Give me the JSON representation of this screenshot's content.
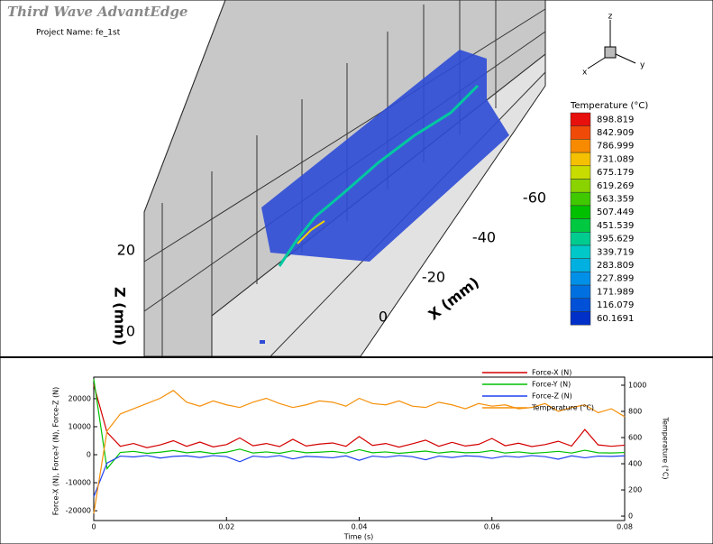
{
  "header": {
    "title": "Third Wave AdvantEdge",
    "project": "Project Name: fe_1st"
  },
  "view3d": {
    "z_label": "Z (mm)",
    "x_label": "X (mm)",
    "z_ticks": [
      20,
      0
    ],
    "x_ticks": [
      0,
      -20,
      -40,
      -60
    ],
    "triad": {
      "z": "z",
      "x": "x",
      "y": "y"
    }
  },
  "legend": {
    "title": "Temperature (°C)",
    "levels": [
      {
        "value": 898.819,
        "color": "#e8100c"
      },
      {
        "value": 842.909,
        "color": "#f04a08"
      },
      {
        "value": 786.999,
        "color": "#f88a00"
      },
      {
        "value": 731.089,
        "color": "#f5c000"
      },
      {
        "value": 675.179,
        "color": "#c8dc00"
      },
      {
        "value": 619.269,
        "color": "#8ad200"
      },
      {
        "value": 563.359,
        "color": "#40c800"
      },
      {
        "value": 507.449,
        "color": "#00c000"
      },
      {
        "value": 451.539,
        "color": "#00c840"
      },
      {
        "value": 395.629,
        "color": "#00cc90"
      },
      {
        "value": 339.719,
        "color": "#00c8c8"
      },
      {
        "value": 283.809,
        "color": "#00b0e0"
      },
      {
        "value": 227.899,
        "color": "#0090e8"
      },
      {
        "value": 171.989,
        "color": "#0070e0"
      },
      {
        "value": 116.079,
        "color": "#0050d8"
      },
      {
        "value": 60.1691,
        "color": "#0030c8"
      }
    ]
  },
  "chart_data": {
    "type": "line",
    "xlabel": "Time (s)",
    "ylabel": "Force-X (N), Force-Y (N), Force-Z (N)",
    "y2label": "Temperature (°C)",
    "x": [
      0,
      0.002,
      0.004,
      0.006,
      0.008,
      0.01,
      0.012,
      0.014,
      0.016,
      0.018,
      0.02,
      0.022,
      0.024,
      0.026,
      0.028,
      0.03,
      0.032,
      0.034,
      0.036,
      0.038,
      0.04,
      0.042,
      0.044,
      0.046,
      0.048,
      0.05,
      0.052,
      0.054,
      0.056,
      0.058,
      0.06,
      0.062,
      0.064,
      0.066,
      0.068,
      0.07,
      0.072,
      0.074,
      0.076,
      0.078,
      0.08
    ],
    "series": [
      {
        "name": "Force-X (N)",
        "color": "#d40000",
        "values": [
          25000,
          8000,
          3000,
          4000,
          2500,
          3500,
          5000,
          3000,
          4500,
          2800,
          3600,
          6000,
          3200,
          4000,
          2900,
          5500,
          3100,
          3800,
          4200,
          3000,
          6500,
          3300,
          4000,
          2700,
          3900,
          5200,
          3000,
          4400,
          3100,
          3700,
          5800,
          3200,
          4100,
          2900,
          3600,
          4800,
          3100,
          9000,
          3500,
          3000,
          3400
        ]
      },
      {
        "name": "Force-Y (N)",
        "color": "#00c000",
        "values": [
          27000,
          -5000,
          800,
          1200,
          500,
          900,
          1500,
          700,
          1100,
          400,
          900,
          2000,
          600,
          1000,
          500,
          1400,
          700,
          900,
          1200,
          600,
          1800,
          700,
          1000,
          500,
          900,
          1300,
          600,
          1100,
          700,
          800,
          1500,
          600,
          1000,
          500,
          800,
          1200,
          600,
          1600,
          700,
          600,
          800
        ]
      },
      {
        "name": "Force-Z (N)",
        "color": "#2040f0",
        "values": [
          -15000,
          -3000,
          -500,
          -800,
          -300,
          -1200,
          -600,
          -400,
          -1000,
          -300,
          -700,
          -2500,
          -500,
          -900,
          -300,
          -1500,
          -600,
          -800,
          -1100,
          -400,
          -2000,
          -500,
          -900,
          -300,
          -700,
          -1800,
          -500,
          -1000,
          -400,
          -600,
          -1300,
          -500,
          -900,
          -300,
          -700,
          -1600,
          -400,
          -1100,
          -500,
          -600,
          -400
        ]
      },
      {
        "name": "Temperature (°C)",
        "color": "#f5900a",
        "axis": "y2",
        "values": [
          20,
          650,
          780,
          820,
          860,
          900,
          960,
          870,
          840,
          880,
          850,
          830,
          870,
          900,
          860,
          830,
          850,
          880,
          870,
          840,
          900,
          860,
          850,
          880,
          840,
          830,
          870,
          850,
          820,
          860,
          840,
          850,
          820,
          830,
          860,
          800,
          830,
          850,
          790,
          820,
          760
        ]
      }
    ],
    "xlim": [
      0,
      0.08
    ],
    "xticks": [
      0,
      0.02,
      0.04,
      0.06,
      0.08
    ],
    "ylim": [
      -23500,
      27700
    ],
    "yticks": [
      -20000,
      -10000,
      0,
      10000,
      20000
    ],
    "y2lim": [
      -34,
      1062
    ],
    "y2ticks": [
      0,
      200,
      400,
      600,
      800,
      1000
    ]
  }
}
